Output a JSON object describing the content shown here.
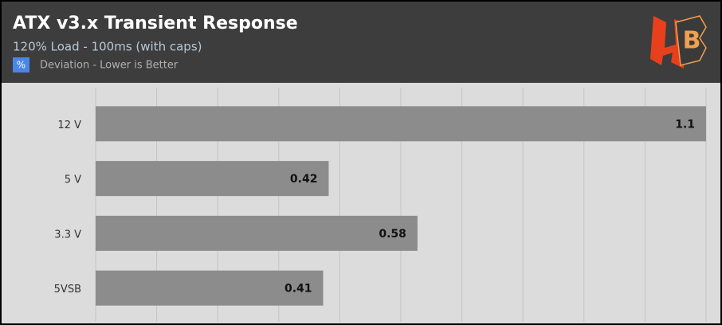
{
  "chart_data": {
    "type": "hbar",
    "title": "ATX v3.x Transient Response",
    "subtitle": "120% Load - 100ms (with caps)",
    "legend": {
      "symbol": "%",
      "label": "Deviation - Lower is Better"
    },
    "categories": [
      "12 V",
      "5 V",
      "3.3 V",
      "5VSB"
    ],
    "values": [
      1.1,
      0.42,
      0.58,
      0.41
    ],
    "color": "#8c8c8c",
    "xlim": [
      0,
      1.1
    ],
    "xticks": [
      0,
      0.11,
      0.22,
      0.33,
      0.44,
      0.55,
      0.66,
      0.77,
      0.88,
      0.99,
      1.1
    ],
    "grid": true
  }
}
